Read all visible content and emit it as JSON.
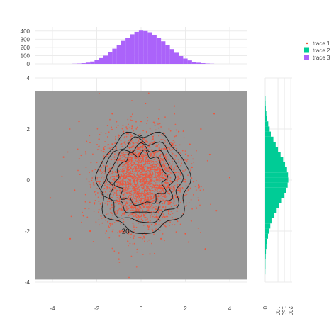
{
  "chart_data": {
    "type": "scatter",
    "title": "",
    "layout": "joint scatter with marginal histograms and 2D density contour",
    "main": {
      "xlim": [
        -4.8,
        4.8
      ],
      "ylim": [
        -4,
        4
      ],
      "x_ticks": [
        -4,
        -2,
        0,
        2,
        4
      ],
      "y_ticks": [
        -4,
        -2,
        0,
        2,
        4
      ],
      "plot_background": "#999999",
      "grid": true,
      "marker_color": "#ef553b"
    },
    "scatter_points": [
      [
        0.1,
        0.2
      ],
      [
        -0.5,
        0.8
      ],
      [
        0.9,
        -0.3
      ],
      [
        -1.1,
        -0.6
      ],
      [
        1.4,
        0.9
      ],
      [
        -0.2,
        -1.2
      ],
      [
        0.6,
        1.5
      ],
      [
        -1.6,
        0.4
      ],
      [
        1.9,
        -0.8
      ],
      [
        -0.8,
        1.9
      ],
      [
        0.3,
        -1.8
      ],
      [
        2.3,
        0.5
      ],
      [
        -2.1,
        -0.9
      ],
      [
        0.0,
        2.3
      ],
      [
        1.2,
        -1.6
      ],
      [
        -1.4,
        -1.7
      ],
      [
        2.6,
        -0.2
      ],
      [
        -2.5,
        1.1
      ],
      [
        0.8,
        2.4
      ],
      [
        -0.6,
        -2.4
      ],
      [
        3.1,
        1.0
      ],
      [
        -3.0,
        -0.4
      ],
      [
        1.7,
        1.9
      ],
      [
        -1.9,
        1.6
      ],
      [
        0.4,
        -2.9
      ],
      [
        2.0,
        -2.1
      ],
      [
        -2.3,
        -2.0
      ],
      [
        3.4,
        -1.2
      ],
      [
        -3.5,
        0.9
      ],
      [
        0.2,
        3.0
      ],
      [
        -4.1,
        -0.7
      ],
      [
        4.0,
        0.1
      ],
      [
        1.5,
        2.9
      ],
      [
        -1.0,
        -3.1
      ],
      [
        2.7,
        2.0
      ],
      [
        -2.8,
        2.3
      ],
      [
        0.5,
        0.6
      ],
      [
        -0.3,
        -0.4
      ],
      [
        1.0,
        0.1
      ],
      [
        -0.9,
        0.2
      ],
      [
        0.7,
        -0.9
      ],
      [
        -0.1,
        1.0
      ],
      [
        1.3,
        -0.4
      ],
      [
        -1.2,
        0.9
      ],
      [
        0.2,
        -0.6
      ],
      [
        -0.7,
        -0.1
      ],
      [
        1.1,
        1.2
      ],
      [
        -1.5,
        -0.3
      ],
      [
        2.2,
        1.4
      ],
      [
        -2.0,
        0.3
      ],
      [
        0.9,
        -2.3
      ],
      [
        -0.4,
        2.1
      ],
      [
        2.5,
        -1.1
      ],
      [
        -2.6,
        -1.4
      ],
      [
        1.8,
        0.2
      ],
      [
        -1.3,
        2.6
      ],
      [
        -3.2,
        -2.3
      ],
      [
        3.3,
        2.6
      ],
      [
        -0.2,
        -3.4
      ],
      [
        2.9,
        -2.7
      ]
    ],
    "contours": {
      "levels": [
        0,
        20
      ],
      "labels": [
        "0",
        "20"
      ],
      "line_color": "#222222"
    },
    "x_marginal": {
      "type": "histogram",
      "color": "#ab63fa",
      "y_ticks": [
        0,
        100,
        200,
        300,
        400
      ],
      "ylim": [
        0,
        450
      ],
      "bin_centers": [
        -3.0,
        -2.8,
        -2.6,
        -2.4,
        -2.2,
        -2.0,
        -1.8,
        -1.6,
        -1.4,
        -1.2,
        -1.0,
        -0.8,
        -0.6,
        -0.4,
        -0.2,
        0.0,
        0.2,
        0.4,
        0.6,
        0.8,
        1.0,
        1.2,
        1.4,
        1.6,
        1.8,
        2.0,
        2.2,
        2.4,
        2.6,
        2.8,
        3.0,
        3.2
      ],
      "values": [
        2,
        4,
        8,
        15,
        28,
        45,
        70,
        100,
        140,
        185,
        230,
        280,
        320,
        360,
        390,
        405,
        400,
        385,
        355,
        315,
        275,
        225,
        180,
        135,
        95,
        65,
        42,
        25,
        14,
        8,
        4,
        2
      ]
    },
    "y_marginal": {
      "type": "histogram",
      "color": "#00cc96",
      "x_ticks": [
        0,
        100,
        150,
        200
      ],
      "xlim": [
        0,
        210
      ],
      "bin_centers": [
        -3.6,
        -3.4,
        -3.2,
        -3.0,
        -2.8,
        -2.6,
        -2.4,
        -2.2,
        -2.0,
        -1.8,
        -1.6,
        -1.4,
        -1.2,
        -1.0,
        -0.8,
        -0.6,
        -0.4,
        -0.2,
        0.0,
        0.2,
        0.4,
        0.6,
        0.8,
        1.0,
        1.2,
        1.4,
        1.6,
        1.8,
        2.0,
        2.2,
        2.4,
        2.6,
        2.8,
        3.0,
        3.2
      ],
      "values": [
        1,
        2,
        2,
        4,
        6,
        10,
        15,
        22,
        30,
        40,
        55,
        72,
        90,
        110,
        130,
        150,
        165,
        175,
        180,
        178,
        170,
        155,
        140,
        120,
        100,
        82,
        64,
        48,
        35,
        24,
        15,
        9,
        5,
        3,
        2
      ]
    },
    "legend": {
      "placement": "top-right",
      "entries": [
        {
          "name": "trace 1",
          "color": "#ef553b",
          "kind": "marker"
        },
        {
          "name": "trace 2",
          "color": "#00cc96",
          "kind": "bar"
        },
        {
          "name": "trace 3",
          "color": "#ab63fa",
          "kind": "bar"
        }
      ]
    }
  }
}
